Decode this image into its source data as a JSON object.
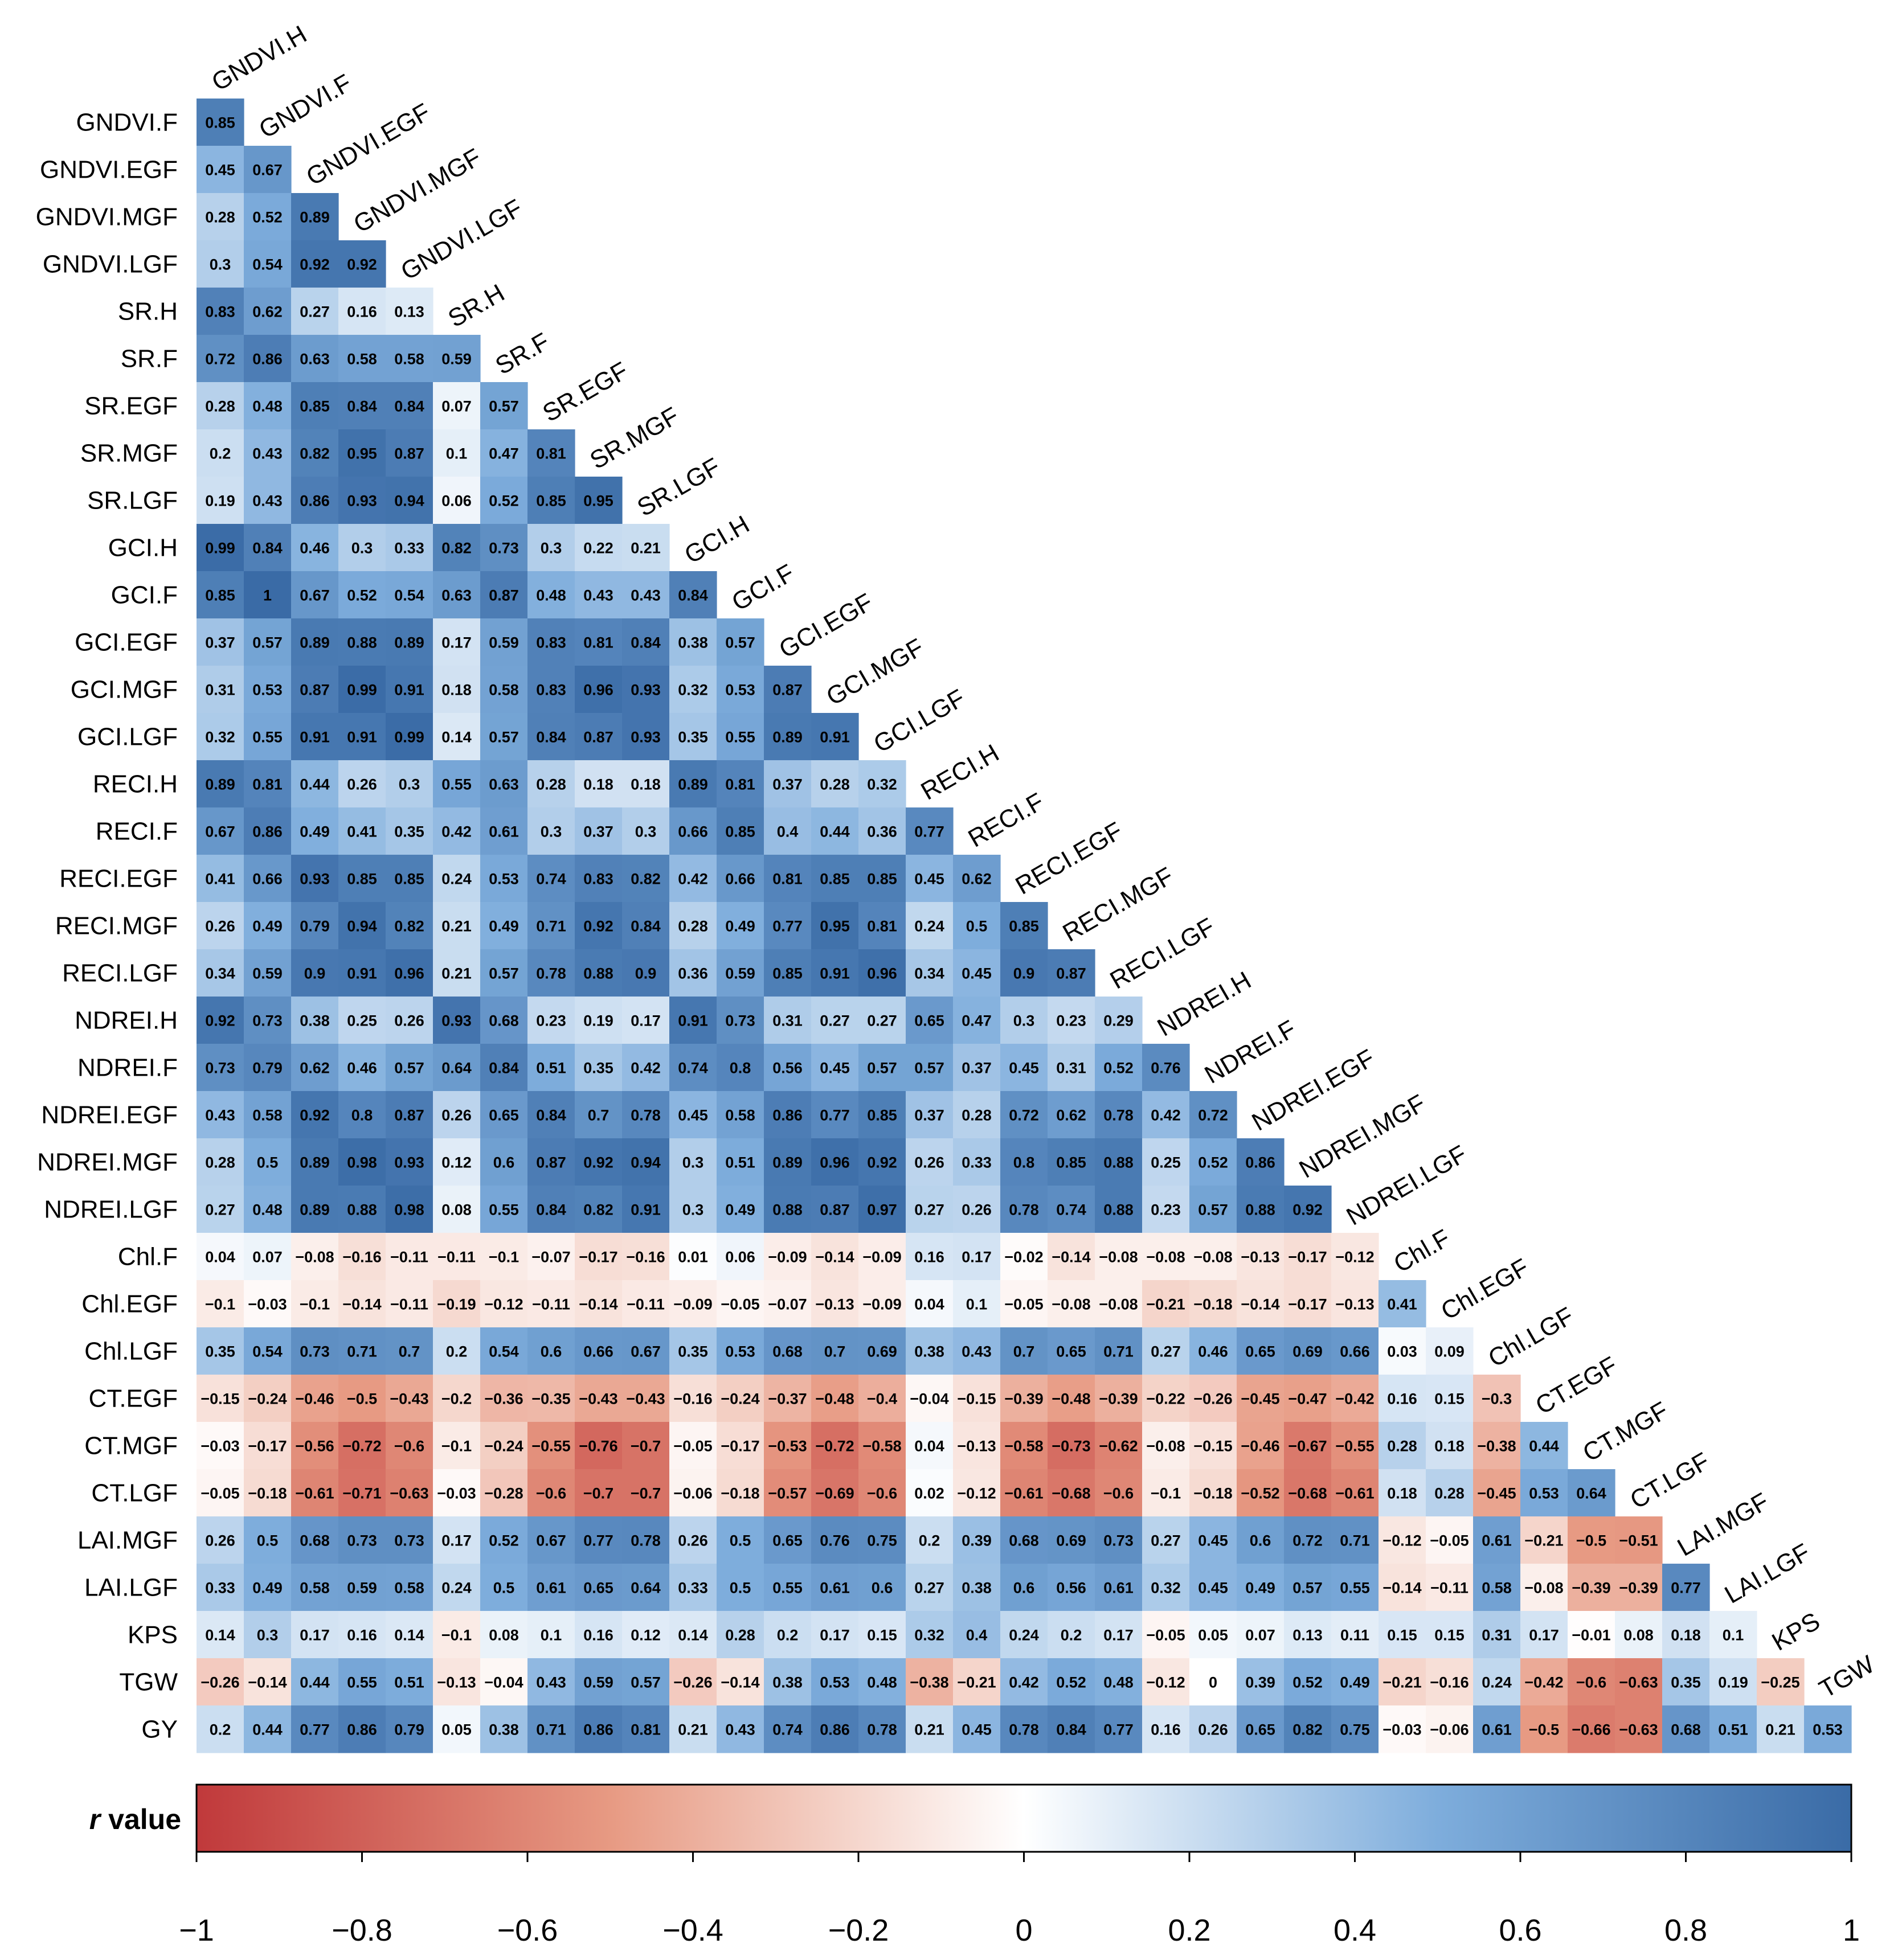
{
  "chart_data": {
    "type": "heatmap",
    "subtype": "lower-triangular correlation matrix",
    "row_labels": [
      "GNDVI.F",
      "GNDVI.EGF",
      "GNDVI.MGF",
      "GNDVI.LGF",
      "SR.H",
      "SR.F",
      "SR.EGF",
      "SR.MGF",
      "SR.LGF",
      "GCI.H",
      "GCI.F",
      "GCI.EGF",
      "GCI.MGF",
      "GCI.LGF",
      "RECI.H",
      "RECI.F",
      "RECI.EGF",
      "RECI.MGF",
      "RECI.LGF",
      "NDREI.H",
      "NDREI.F",
      "NDREI.EGF",
      "NDREI.MGF",
      "NDREI.LGF",
      "Chl.F",
      "Chl.EGF",
      "Chl.LGF",
      "CT.EGF",
      "CT.MGF",
      "CT.LGF",
      "LAI.MGF",
      "LAI.LGF",
      "KPS",
      "TGW",
      "GY"
    ],
    "col_labels": [
      "GNDVI.H",
      "GNDVI.F",
      "GNDVI.EGF",
      "GNDVI.MGF",
      "GNDVI.LGF",
      "SR.H",
      "SR.F",
      "SR.EGF",
      "SR.MGF",
      "SR.LGF",
      "GCI.H",
      "GCI.F",
      "GCI.EGF",
      "GCI.MGF",
      "GCI.LGF",
      "RECI.H",
      "RECI.F",
      "RECI.EGF",
      "RECI.MGF",
      "RECI.LGF",
      "NDREI.H",
      "NDREI.F",
      "NDREI.EGF",
      "NDREI.MGF",
      "NDREI.LGF",
      "Chl.F",
      "Chl.EGF",
      "Chl.LGF",
      "CT.EGF",
      "CT.MGF",
      "CT.LGF",
      "LAI.MGF",
      "LAI.LGF",
      "KPS",
      "TGW"
    ],
    "values": [
      [
        0.85
      ],
      [
        0.45,
        0.67
      ],
      [
        0.28,
        0.52,
        0.89
      ],
      [
        0.3,
        0.54,
        0.92,
        0.92
      ],
      [
        0.83,
        0.62,
        0.27,
        0.16,
        0.13
      ],
      [
        0.72,
        0.86,
        0.63,
        0.58,
        0.58,
        0.59
      ],
      [
        0.28,
        0.48,
        0.85,
        0.84,
        0.84,
        0.07,
        0.57
      ],
      [
        0.2,
        0.43,
        0.82,
        0.95,
        0.87,
        0.1,
        0.47,
        0.81
      ],
      [
        0.19,
        0.43,
        0.86,
        0.93,
        0.94,
        0.06,
        0.52,
        0.85,
        0.95
      ],
      [
        0.99,
        0.84,
        0.46,
        0.3,
        0.33,
        0.82,
        0.73,
        0.3,
        0.22,
        0.21
      ],
      [
        0.85,
        1,
        0.67,
        0.52,
        0.54,
        0.63,
        0.87,
        0.48,
        0.43,
        0.43,
        0.84
      ],
      [
        0.37,
        0.57,
        0.89,
        0.88,
        0.89,
        0.17,
        0.59,
        0.83,
        0.81,
        0.84,
        0.38,
        0.57
      ],
      [
        0.31,
        0.53,
        0.87,
        0.99,
        0.91,
        0.18,
        0.58,
        0.83,
        0.96,
        0.93,
        0.32,
        0.53,
        0.87
      ],
      [
        0.32,
        0.55,
        0.91,
        0.91,
        0.99,
        0.14,
        0.57,
        0.84,
        0.87,
        0.93,
        0.35,
        0.55,
        0.89,
        0.91
      ],
      [
        0.89,
        0.81,
        0.44,
        0.26,
        0.3,
        0.55,
        0.63,
        0.28,
        0.18,
        0.18,
        0.89,
        0.81,
        0.37,
        0.28,
        0.32
      ],
      [
        0.67,
        0.86,
        0.49,
        0.41,
        0.35,
        0.42,
        0.61,
        0.3,
        0.37,
        0.3,
        0.66,
        0.85,
        0.4,
        0.44,
        0.36,
        0.77
      ],
      [
        0.41,
        0.66,
        0.93,
        0.85,
        0.85,
        0.24,
        0.53,
        0.74,
        0.83,
        0.82,
        0.42,
        0.66,
        0.81,
        0.85,
        0.85,
        0.45,
        0.62
      ],
      [
        0.26,
        0.49,
        0.79,
        0.94,
        0.82,
        0.21,
        0.49,
        0.71,
        0.92,
        0.84,
        0.28,
        0.49,
        0.77,
        0.95,
        0.81,
        0.24,
        0.5,
        0.85
      ],
      [
        0.34,
        0.59,
        0.9,
        0.91,
        0.96,
        0.21,
        0.57,
        0.78,
        0.88,
        0.9,
        0.36,
        0.59,
        0.85,
        0.91,
        0.96,
        0.34,
        0.45,
        0.9,
        0.87
      ],
      [
        0.92,
        0.73,
        0.38,
        0.25,
        0.26,
        0.93,
        0.68,
        0.23,
        0.19,
        0.17,
        0.91,
        0.73,
        0.31,
        0.27,
        0.27,
        0.65,
        0.47,
        0.3,
        0.23,
        0.29
      ],
      [
        0.73,
        0.79,
        0.62,
        0.46,
        0.57,
        0.64,
        0.84,
        0.51,
        0.35,
        0.42,
        0.74,
        0.8,
        0.56,
        0.45,
        0.57,
        0.57,
        0.37,
        0.45,
        0.31,
        0.52,
        0.76
      ],
      [
        0.43,
        0.58,
        0.92,
        0.8,
        0.87,
        0.26,
        0.65,
        0.84,
        0.7,
        0.78,
        0.45,
        0.58,
        0.86,
        0.77,
        0.85,
        0.37,
        0.28,
        0.72,
        0.62,
        0.78,
        0.42,
        0.72
      ],
      [
        0.28,
        0.5,
        0.89,
        0.98,
        0.93,
        0.12,
        0.6,
        0.87,
        0.92,
        0.94,
        0.3,
        0.51,
        0.89,
        0.96,
        0.92,
        0.26,
        0.33,
        0.8,
        0.85,
        0.88,
        0.25,
        0.52,
        0.86
      ],
      [
        0.27,
        0.48,
        0.89,
        0.88,
        0.98,
        0.08,
        0.55,
        0.84,
        0.82,
        0.91,
        0.3,
        0.49,
        0.88,
        0.87,
        0.97,
        0.27,
        0.26,
        0.78,
        0.74,
        0.88,
        0.23,
        0.57,
        0.88,
        0.92
      ],
      [
        0.04,
        0.07,
        -0.08,
        -0.16,
        -0.11,
        -0.11,
        -0.1,
        -0.07,
        -0.17,
        -0.16,
        0.01,
        0.06,
        -0.09,
        -0.14,
        -0.09,
        0.16,
        0.17,
        -0.02,
        -0.14,
        -0.08,
        -0.08,
        -0.08,
        -0.13,
        -0.17,
        -0.12
      ],
      [
        -0.1,
        -0.03,
        -0.1,
        -0.14,
        -0.11,
        -0.19,
        -0.12,
        -0.11,
        -0.14,
        -0.11,
        -0.09,
        -0.05,
        -0.07,
        -0.13,
        -0.09,
        0.04,
        0.1,
        -0.05,
        -0.08,
        -0.08,
        -0.21,
        -0.18,
        -0.14,
        -0.17,
        -0.13,
        0.41
      ],
      [
        0.35,
        0.54,
        0.73,
        0.71,
        0.7,
        0.2,
        0.54,
        0.6,
        0.66,
        0.67,
        0.35,
        0.53,
        0.68,
        0.7,
        0.69,
        0.38,
        0.43,
        0.7,
        0.65,
        0.71,
        0.27,
        0.46,
        0.65,
        0.69,
        0.66,
        0.03,
        0.09
      ],
      [
        -0.15,
        -0.24,
        -0.46,
        -0.5,
        -0.43,
        -0.2,
        -0.36,
        -0.35,
        -0.43,
        -0.43,
        -0.16,
        -0.24,
        -0.37,
        -0.48,
        -0.4,
        -0.04,
        -0.15,
        -0.39,
        -0.48,
        -0.39,
        -0.22,
        -0.26,
        -0.45,
        -0.47,
        -0.42,
        0.16,
        0.15,
        -0.3
      ],
      [
        -0.03,
        -0.17,
        -0.56,
        -0.72,
        -0.6,
        -0.1,
        -0.24,
        -0.55,
        -0.76,
        -0.7,
        -0.05,
        -0.17,
        -0.53,
        -0.72,
        -0.58,
        0.04,
        -0.13,
        -0.58,
        -0.73,
        -0.62,
        -0.08,
        -0.15,
        -0.46,
        -0.67,
        -0.55,
        0.28,
        0.18,
        -0.38,
        0.44
      ],
      [
        -0.05,
        -0.18,
        -0.61,
        -0.71,
        -0.63,
        -0.03,
        -0.28,
        -0.6,
        -0.7,
        -0.7,
        -0.06,
        -0.18,
        -0.57,
        -0.69,
        -0.6,
        0.02,
        -0.12,
        -0.61,
        -0.68,
        -0.6,
        -0.1,
        -0.18,
        -0.52,
        -0.68,
        -0.61,
        0.18,
        0.28,
        -0.45,
        0.53,
        0.64
      ],
      [
        0.26,
        0.5,
        0.68,
        0.73,
        0.73,
        0.17,
        0.52,
        0.67,
        0.77,
        0.78,
        0.26,
        0.5,
        0.65,
        0.76,
        0.75,
        0.2,
        0.39,
        0.68,
        0.69,
        0.73,
        0.27,
        0.45,
        0.6,
        0.72,
        0.71,
        -0.12,
        -0.05,
        0.61,
        -0.21,
        -0.5,
        -0.51
      ],
      [
        0.33,
        0.49,
        0.58,
        0.59,
        0.58,
        0.24,
        0.5,
        0.61,
        0.65,
        0.64,
        0.33,
        0.5,
        0.55,
        0.61,
        0.6,
        0.27,
        0.38,
        0.6,
        0.56,
        0.61,
        0.32,
        0.45,
        0.49,
        0.57,
        0.55,
        -0.14,
        -0.11,
        0.58,
        -0.08,
        -0.39,
        -0.39,
        0.77
      ],
      [
        0.14,
        0.3,
        0.17,
        0.16,
        0.14,
        -0.1,
        0.08,
        0.1,
        0.16,
        0.12,
        0.14,
        0.28,
        0.2,
        0.17,
        0.15,
        0.32,
        0.4,
        0.24,
        0.2,
        0.17,
        -0.05,
        0.05,
        0.07,
        0.13,
        0.11,
        0.15,
        0.15,
        0.31,
        0.17,
        -0.01,
        0.08,
        0.18,
        0.1
      ],
      [
        -0.26,
        -0.14,
        0.44,
        0.55,
        0.51,
        -0.13,
        -0.04,
        0.43,
        0.59,
        0.57,
        -0.26,
        -0.14,
        0.38,
        0.53,
        0.48,
        -0.38,
        -0.21,
        0.42,
        0.52,
        0.48,
        -0.12,
        0,
        0.39,
        0.52,
        0.49,
        -0.21,
        -0.16,
        0.24,
        -0.42,
        -0.6,
        -0.63,
        0.35,
        0.19,
        -0.25
      ],
      [
        0.2,
        0.44,
        0.77,
        0.86,
        0.79,
        0.05,
        0.38,
        0.71,
        0.86,
        0.81,
        0.21,
        0.43,
        0.74,
        0.86,
        0.78,
        0.21,
        0.45,
        0.78,
        0.84,
        0.77,
        0.16,
        0.26,
        0.65,
        0.82,
        0.75,
        -0.03,
        -0.06,
        0.61,
        -0.5,
        -0.66,
        -0.63,
        0.68,
        0.51,
        0.21,
        0.53
      ]
    ],
    "colorbar": {
      "title_italic": "r",
      "title_rest": " value",
      "range": [
        -1,
        1
      ],
      "ticks": [
        "−1",
        "−0.8",
        "−0.6",
        "−0.4",
        "−0.2",
        "0",
        "0.2",
        "0.4",
        "0.6",
        "0.8",
        "1"
      ],
      "tick_values": [
        -1,
        -0.8,
        -0.6,
        -0.4,
        -0.2,
        0,
        0.2,
        0.4,
        0.6,
        0.8,
        1
      ]
    },
    "colors": {
      "negative_end": "#c0393b",
      "negative_mid": "#e79a83",
      "zero": "#ffffff",
      "positive_mid": "#7eaddc",
      "positive_end": "#3a6ba6"
    }
  }
}
